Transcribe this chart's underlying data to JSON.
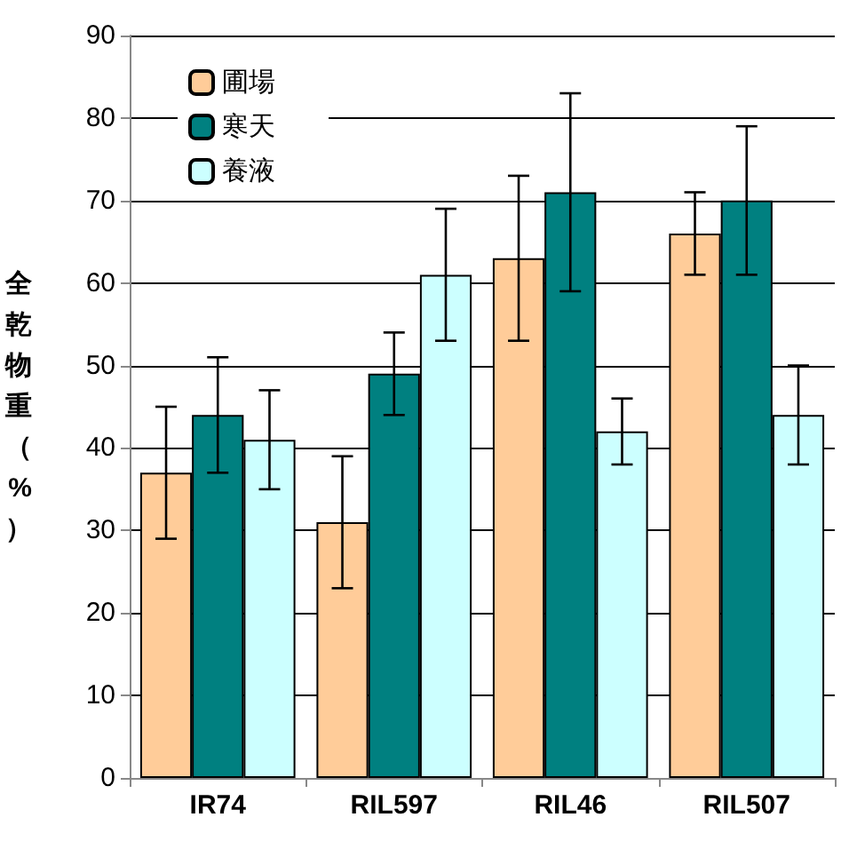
{
  "chart_data": {
    "type": "bar",
    "ylabel": "全乾物重（%）",
    "categories": [
      "IR74",
      "RIL597",
      "RIL46",
      "RIL507"
    ],
    "series": [
      {
        "name": "圃場",
        "color": "#ffcc99",
        "values": [
          37,
          31,
          63,
          66
        ],
        "errors": [
          [
            29,
            45
          ],
          [
            23,
            39
          ],
          [
            53,
            73
          ],
          [
            61,
            71
          ]
        ]
      },
      {
        "name": "寒天",
        "color": "#008080",
        "values": [
          44,
          49,
          71,
          70
        ],
        "errors": [
          [
            37,
            51
          ],
          [
            44,
            54
          ],
          [
            59,
            83
          ],
          [
            61,
            79
          ]
        ]
      },
      {
        "name": "養液",
        "color": "#ccffff",
        "values": [
          41,
          61,
          42,
          44
        ],
        "errors": [
          [
            35,
            47
          ],
          [
            53,
            69
          ],
          [
            38,
            46
          ],
          [
            38,
            50
          ]
        ]
      }
    ],
    "ylim": [
      0,
      90
    ],
    "yticks": [
      0,
      10,
      20,
      30,
      40,
      50,
      60,
      70,
      80,
      90
    ],
    "grid": "y",
    "legend": "top left"
  }
}
